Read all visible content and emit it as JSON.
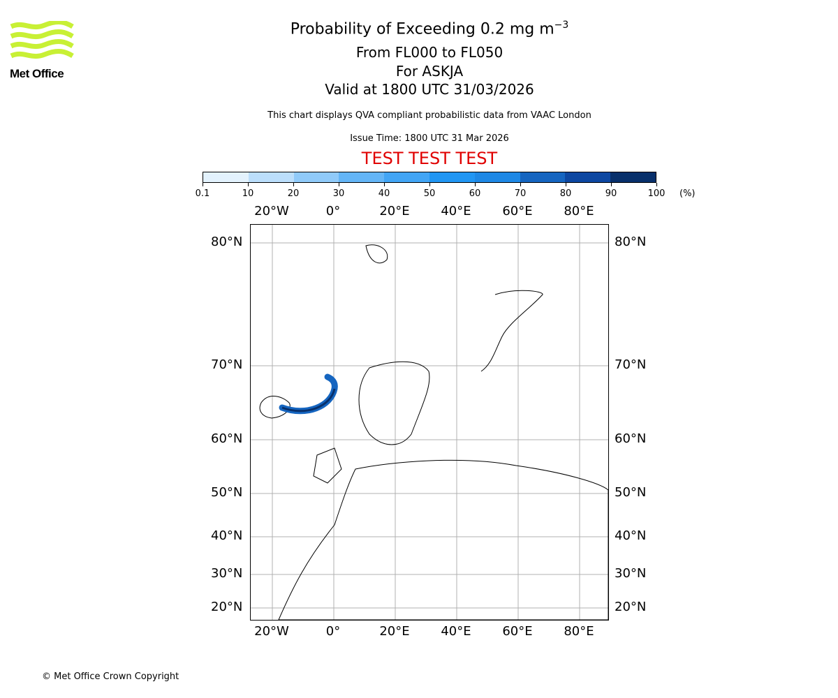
{
  "logo": {
    "text": "Met Office",
    "color": "#c8f035"
  },
  "header": {
    "title": "Probability of Exceeding 0.2 mg m",
    "title_sup": "−3",
    "levels": "From FL000 to FL050",
    "volcano": "For ASKJA",
    "valid": "Valid at 1800 UTC 31/03/2026",
    "description": "This chart displays QVA compliant probabilistic data from VAAC London",
    "issue_time": "Issue Time: 1800 UTC 31 Mar 2026",
    "test_banner": "TEST TEST TEST"
  },
  "colorbar": {
    "ticks": [
      "0.1",
      "10",
      "20",
      "30",
      "40",
      "50",
      "60",
      "70",
      "80",
      "90",
      "100"
    ],
    "unit": "(%)",
    "colors": [
      "#e3f2fd",
      "#bbdefb",
      "#90caf9",
      "#64b5f6",
      "#42a5f5",
      "#2196f3",
      "#1e88e5",
      "#1565c0",
      "#0d47a1",
      "#08306b"
    ]
  },
  "axes": {
    "lon_labels": [
      "20°W",
      "0°",
      "20°E",
      "40°E",
      "60°E",
      "80°E"
    ],
    "lat_labels": [
      "80°N",
      "70°N",
      "60°N",
      "50°N",
      "40°N",
      "30°N",
      "20°N"
    ]
  },
  "footer": {
    "copyright": "© Met Office Crown Copyright"
  }
}
